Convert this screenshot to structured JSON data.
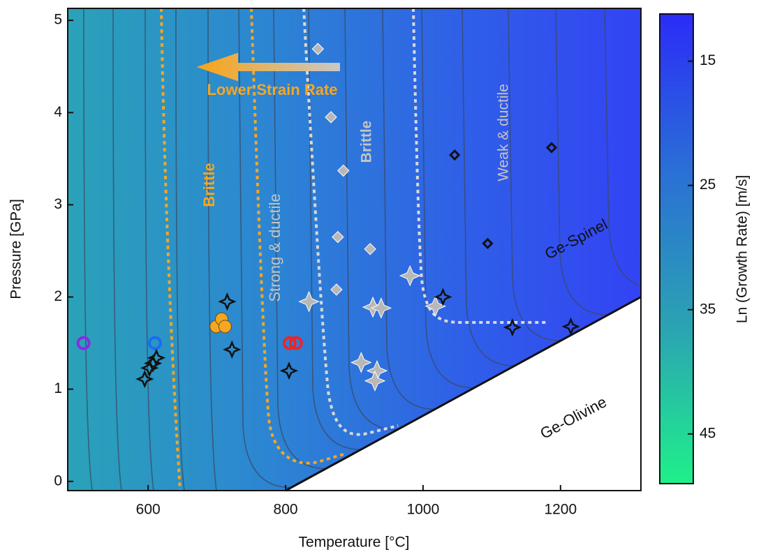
{
  "chart_data": {
    "type": "scatter",
    "x_label": "Temperature [°C]",
    "y_label": "Pressure [GPa]",
    "xlim": [
      483,
      1317
    ],
    "ylim": [
      -0.1,
      5.13
    ],
    "xticks": [
      600,
      800,
      1000,
      1200
    ],
    "yticks": [
      0,
      1,
      2,
      3,
      4,
      5
    ],
    "boundary": {
      "x": [
        800,
        1317
      ],
      "y": [
        -0.1,
        2.0
      ]
    },
    "series": [
      {
        "marker": "circle",
        "filled": false,
        "color": "#8a2be2",
        "x": [
          506
        ],
        "y": [
          1.5
        ]
      },
      {
        "marker": "circle",
        "filled": false,
        "color": "#1a6cf0",
        "x": [
          610
        ],
        "y": [
          1.5
        ]
      },
      {
        "marker": "circle",
        "filled": false,
        "color": "#e8262a",
        "x": [
          806,
          815
        ],
        "y": [
          1.5,
          1.5
        ]
      },
      {
        "marker": "circle",
        "filled": true,
        "color": "#f5a623",
        "x": [
          699,
          707,
          712
        ],
        "y": [
          1.68,
          1.76,
          1.68
        ]
      },
      {
        "marker": "diamond",
        "filled": true,
        "color": "#b8b8b8",
        "x": [
          847,
          866,
          884,
          876,
          923,
          874
        ],
        "y": [
          4.69,
          3.95,
          3.37,
          2.65,
          2.52,
          2.08
        ]
      },
      {
        "marker": "star",
        "filled": true,
        "color": "#b8b8b8",
        "x": [
          834,
          927,
          939,
          981,
          1018,
          910,
          933,
          930
        ],
        "y": [
          1.95,
          1.89,
          1.88,
          2.23,
          1.9,
          1.29,
          1.2,
          1.09
        ]
      },
      {
        "marker": "star",
        "filled": false,
        "color": "#111111",
        "x": [
          595,
          602,
          607,
          612,
          715,
          722,
          805,
          1029,
          1130,
          1215
        ],
        "y": [
          1.11,
          1.23,
          1.28,
          1.34,
          1.95,
          1.43,
          1.2,
          2.0,
          1.67,
          1.68
        ]
      },
      {
        "marker": "diamond",
        "filled": false,
        "color": "#111111",
        "x": [
          1046,
          1187,
          1094
        ],
        "y": [
          3.54,
          3.62,
          2.58
        ]
      }
    ],
    "annotations": [
      "Lower Strain Rate",
      "Brittle",
      "Strong & ductile",
      "Brittle",
      "Weak & ductile",
      "Ge-Spinel",
      "Ge-Olivine"
    ],
    "colorbar": {
      "label": "Ln (Growth Rate) [m/s]",
      "lim": [
        11.2,
        49
      ],
      "ticks": [
        15,
        25,
        35,
        45
      ],
      "colors": [
        "#2b2cf8",
        "#2a6fd6",
        "#2ba3b3",
        "#1ff08a"
      ]
    }
  }
}
